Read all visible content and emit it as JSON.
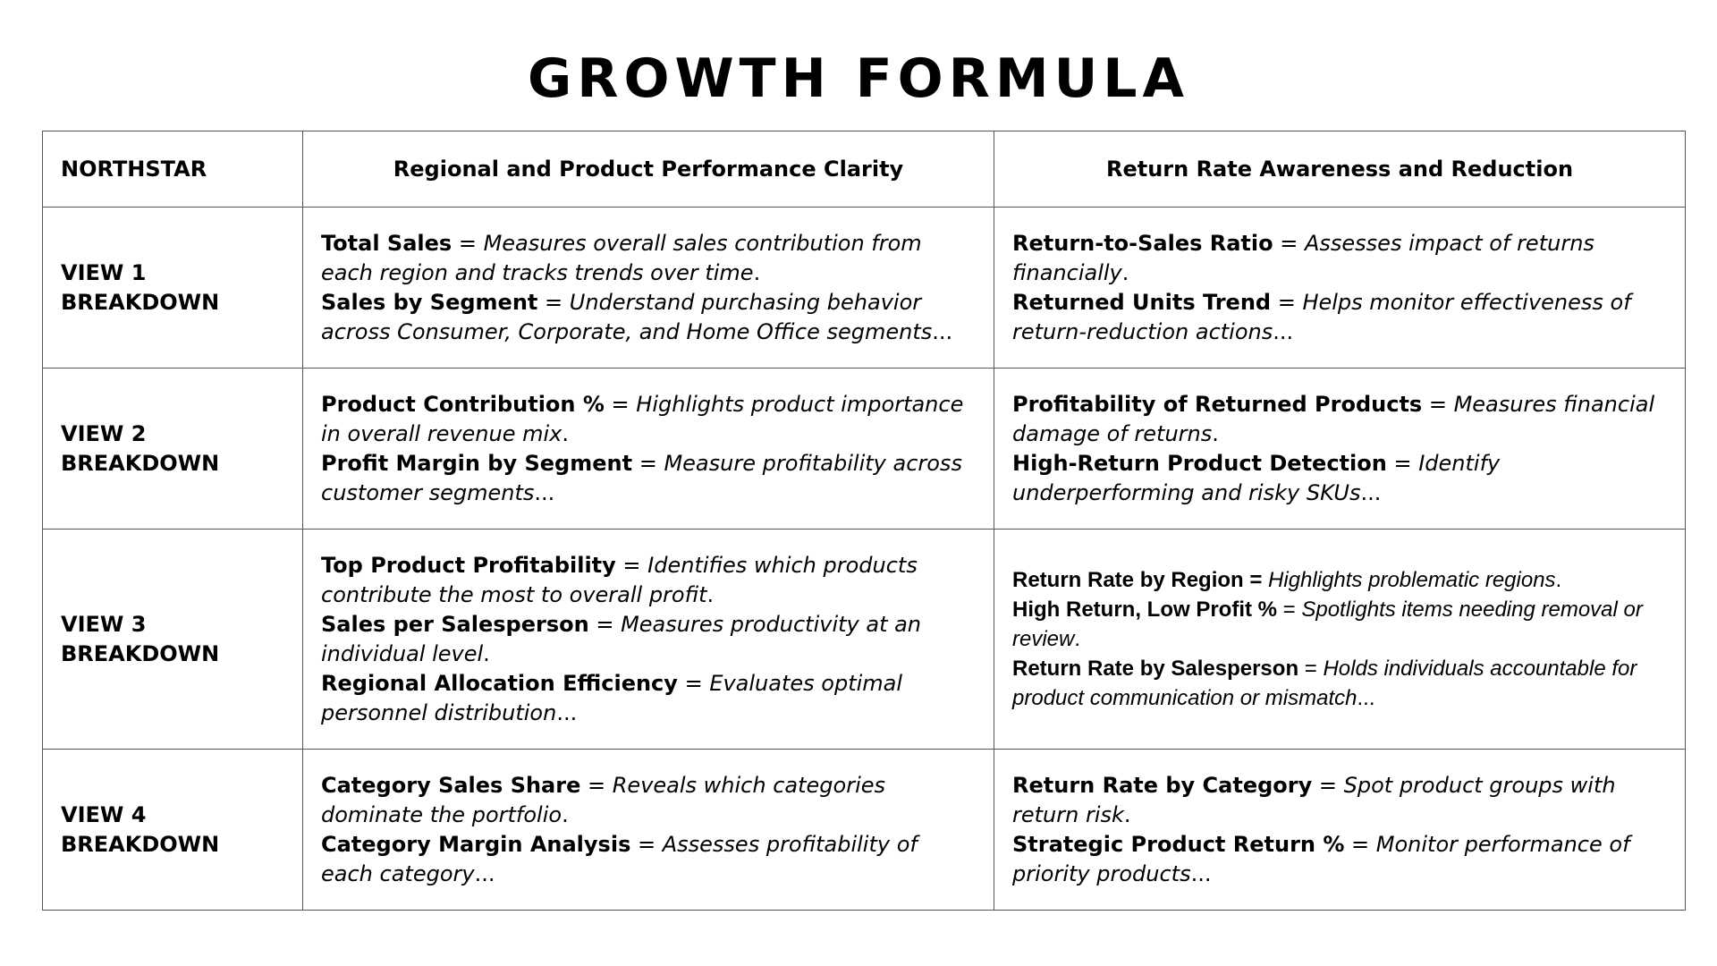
{
  "title": "GROWTH FORMULA",
  "header": {
    "label": "NORTHSTAR",
    "col1": "Regional and Product Performance Clarity",
    "col2": "Return Rate Awareness and Reduction"
  },
  "rows": [
    {
      "label": "VIEW 1 BREAKDOWN",
      "col1": [
        {
          "term": "Total Sales",
          "eq": " = ",
          "desc": "Measures overall sales contribution from each region and tracks trends over time",
          "end": "."
        },
        {
          "term": "Sales by Segment",
          "eq": " = ",
          "desc": "Understand purchasing behavior across Consumer, Corporate, and Home Office segments",
          "end": "..."
        }
      ],
      "col2": [
        {
          "term": "Return-to-Sales Ratio",
          "eq": " = ",
          "desc": "Assesses impact of returns financially",
          "end": "."
        },
        {
          "term": "Returned Units Trend",
          "eq": " = ",
          "desc": "Helps monitor effectiveness of return-reduction actions",
          "end": "..."
        }
      ]
    },
    {
      "label": "VIEW 2 BREAKDOWN",
      "col1": [
        {
          "term": "Product Contribution %",
          "eq": " = ",
          "desc": "Highlights product importance in overall revenue mix",
          "end": "."
        },
        {
          "term": "Profit Margin by Segment",
          "eq": " = ",
          "desc": "Measure profitability across customer segments",
          "end": "..."
        }
      ],
      "col2": [
        {
          "term": "Profitability of Returned Products",
          "eq": " = ",
          "desc": "Measures financial damage of returns",
          "end": "."
        },
        {
          "term": "High-Return Product Detection",
          "eq": " = ",
          "desc": "Identify underperforming and risky SKUs",
          "end": "..."
        }
      ]
    },
    {
      "label": "VIEW 3 BREAKDOWN",
      "col1": [
        {
          "term": "Top Product Profitability",
          "eq": " = ",
          "desc": "Identifies which products contribute the most to overall profit",
          "end": "."
        },
        {
          "term": "Sales per Salesperson",
          "eq": " = ",
          "desc": "Measures productivity at an individual level",
          "end": "."
        },
        {
          "term": "Regional Allocation Efficiency",
          "eq": " = ",
          "desc": "Evaluates optimal personnel distribution",
          "end": "..."
        }
      ],
      "col2": [
        {
          "term": "Return Rate by Region =",
          "eq": " ",
          "desc": "Highlights problematic regions",
          "end": "."
        },
        {
          "term": "High Return, Low Profit %",
          "eq": " = ",
          "desc": "Spotlights items needing removal or review",
          "end": "."
        },
        {
          "term": "Return Rate by Salesperson",
          "eq": " = ",
          "desc": "Holds individuals accountable for product communication or mismatch",
          "end": "..."
        }
      ]
    },
    {
      "label": "VIEW 4 BREAKDOWN",
      "col1": [
        {
          "term": "Category Sales Share",
          "eq": " = ",
          "desc": "Reveals which categories dominate the portfolio",
          "end": "."
        },
        {
          "term": "Category Margin Analysis",
          "eq": " = ",
          "desc": "Assesses profitability of each category",
          "end": "..."
        }
      ],
      "col2": [
        {
          "term": "Return Rate by Category",
          "eq": " = ",
          "desc": "Spot product groups with return risk",
          "end": "."
        },
        {
          "term": "Strategic Product Return %",
          "eq": " = ",
          "desc": "Monitor performance of priority products",
          "end": "..."
        }
      ]
    }
  ]
}
